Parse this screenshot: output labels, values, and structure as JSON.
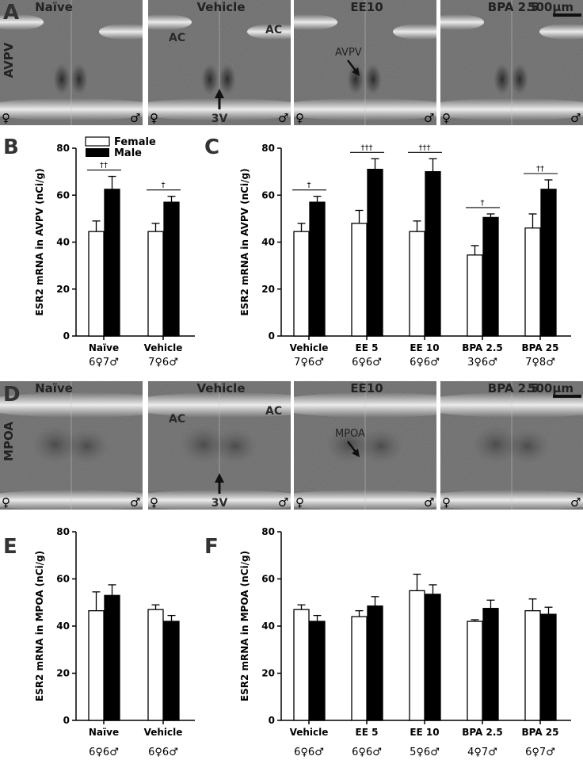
{
  "colors": {
    "female_fill": "#ffffff",
    "male_fill": "#000000",
    "tissue_bg": "#7d7d7d"
  },
  "panel_letters": {
    "A": "A",
    "B": "B",
    "C": "C",
    "D": "D",
    "E": "E",
    "F": "F"
  },
  "legend": {
    "female": "Female",
    "male": "Male"
  },
  "sex_symbols": {
    "female": "♀",
    "male": "♂"
  },
  "scale_bar": "500μm",
  "image_rows": [
    {
      "row_label": "AVPV",
      "images": [
        {
          "title": "Naïve",
          "annotations": []
        },
        {
          "title": "Vehicle",
          "annotations": [
            "AC",
            "AC",
            "3V"
          ]
        },
        {
          "title": "EE10",
          "annotations": [
            "AVPV"
          ]
        },
        {
          "title": "BPA 2.5",
          "annotations": []
        }
      ]
    },
    {
      "row_label": "MPOA",
      "images": [
        {
          "title": "Naïve",
          "annotations": []
        },
        {
          "title": "Vehicle",
          "annotations": [
            "AC",
            "AC",
            "3V"
          ]
        },
        {
          "title": "EE10",
          "annotations": [
            "MPOA"
          ]
        },
        {
          "title": "BPA 2.5",
          "annotations": []
        }
      ]
    }
  ],
  "chart_data": [
    {
      "panel": "B",
      "type": "bar",
      "ylabel": "ESR2 mRNA in AVPV (nCi/g)",
      "ylim": [
        0,
        80
      ],
      "yticks": [
        0,
        20,
        40,
        60,
        80
      ],
      "categories": [
        "Naïve",
        "Vehicle"
      ],
      "n_labels": [
        "6♀7♂",
        "7♀6♂"
      ],
      "significance": [
        "††",
        "†"
      ],
      "series": [
        {
          "name": "Female",
          "values": [
            44.5,
            44.5
          ],
          "errors": [
            4.5,
            3.5
          ]
        },
        {
          "name": "Male",
          "values": [
            62.5,
            57
          ],
          "errors": [
            5.5,
            2.5
          ]
        }
      ]
    },
    {
      "panel": "C",
      "type": "bar",
      "ylabel": "ESR2 mRNA in AVPV (nCi/g)",
      "ylim": [
        0,
        80
      ],
      "yticks": [
        0,
        20,
        40,
        60,
        80
      ],
      "categories": [
        "Vehicle",
        "EE 5",
        "EE 10",
        "BPA 2.5",
        "BPA 25"
      ],
      "n_labels": [
        "7♀6♂",
        "6♀6♂",
        "6♀6♂",
        "3♀6♂",
        "7♀8♂"
      ],
      "significance": [
        "†",
        "†††",
        "†††",
        "†",
        "††"
      ],
      "series": [
        {
          "name": "Female",
          "values": [
            44.5,
            48,
            44.5,
            34.5,
            46
          ],
          "errors": [
            3.5,
            5.5,
            4.5,
            4,
            6
          ]
        },
        {
          "name": "Male",
          "values": [
            57,
            71,
            70,
            50.5,
            62.5
          ],
          "errors": [
            2.5,
            4.5,
            5.5,
            1.5,
            4
          ]
        }
      ]
    },
    {
      "panel": "E",
      "type": "bar",
      "ylabel": "ESR2 mRNA in MPOA (nCi/g)",
      "ylim": [
        0,
        80
      ],
      "yticks": [
        0,
        20,
        40,
        60,
        80
      ],
      "categories": [
        "Naïve",
        "Vehicle"
      ],
      "n_labels": [
        "6♀6♂",
        "6♀6♂"
      ],
      "significance": [
        "",
        ""
      ],
      "series": [
        {
          "name": "Female",
          "values": [
            46.5,
            47
          ],
          "errors": [
            8,
            2
          ]
        },
        {
          "name": "Male",
          "values": [
            53,
            42
          ],
          "errors": [
            4.5,
            2.5
          ]
        }
      ]
    },
    {
      "panel": "F",
      "type": "bar",
      "ylabel": "ESR2 mRNA in MPOA (nCi/g)",
      "ylim": [
        0,
        80
      ],
      "yticks": [
        0,
        20,
        40,
        60,
        80
      ],
      "categories": [
        "Vehicle",
        "EE 5",
        "EE 10",
        "BPA 2.5",
        "BPA 25"
      ],
      "n_labels": [
        "6♀6♂",
        "6♀6♂",
        "5♀6♂",
        "4♀7♂",
        "6♀7♂"
      ],
      "significance": [
        "",
        "",
        "",
        "",
        ""
      ],
      "series": [
        {
          "name": "Female",
          "values": [
            47,
            44,
            55,
            42,
            46.5
          ],
          "errors": [
            2,
            2.5,
            7,
            0.7,
            5
          ]
        },
        {
          "name": "Male",
          "values": [
            42,
            48.5,
            53.5,
            47.5,
            45
          ],
          "errors": [
            2.5,
            4,
            4,
            3.5,
            3
          ]
        }
      ]
    }
  ]
}
